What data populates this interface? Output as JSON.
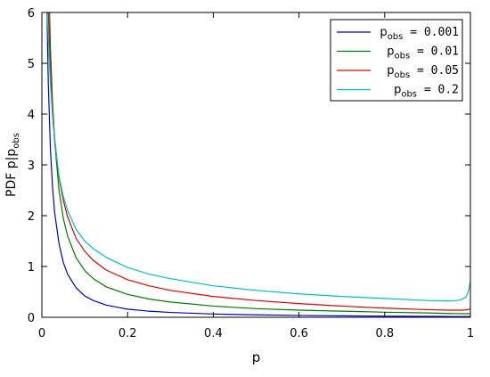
{
  "chart_data": {
    "type": "line",
    "title": "",
    "xlabel": "p",
    "ylabel": "PDF p|p",
    "ylabel_sub": "obs",
    "xlim": [
      0,
      1
    ],
    "ylim": [
      0,
      6
    ],
    "x_ticks": [
      {
        "value": 0,
        "label": "0"
      },
      {
        "value": 0.2,
        "label": "0.2"
      },
      {
        "value": 0.4,
        "label": "0.4"
      },
      {
        "value": 0.6,
        "label": "0.6"
      },
      {
        "value": 0.8,
        "label": "0.8"
      },
      {
        "value": 1,
        "label": "1"
      }
    ],
    "y_ticks": [
      {
        "value": 0,
        "label": "0"
      },
      {
        "value": 1,
        "label": "1"
      },
      {
        "value": 2,
        "label": "2"
      },
      {
        "value": 3,
        "label": "3"
      },
      {
        "value": 4,
        "label": "4"
      },
      {
        "value": 5,
        "label": "5"
      },
      {
        "value": 6,
        "label": "6"
      }
    ],
    "grid": false,
    "legend": {
      "placement": "top-right",
      "framed": true
    },
    "series": [
      {
        "name": "p",
        "name_sub": "obs",
        "name_value": " = 0.001",
        "color": "#0000cc",
        "x": [
          0.012,
          0.015,
          0.02,
          0.025,
          0.03,
          0.04,
          0.05,
          0.06,
          0.08,
          0.1,
          0.12,
          0.15,
          0.2,
          0.25,
          0.3,
          0.4,
          0.5,
          0.6,
          0.7,
          0.8,
          0.9,
          0.95,
          0.99,
          1.0
        ],
        "y": [
          6.0,
          4.6,
          3.3,
          2.55,
          2.05,
          1.45,
          1.08,
          0.85,
          0.58,
          0.42,
          0.33,
          0.24,
          0.16,
          0.12,
          0.095,
          0.065,
          0.048,
          0.036,
          0.028,
          0.022,
          0.017,
          0.015,
          0.013,
          0.013
        ]
      },
      {
        "name": "p",
        "name_sub": "obs",
        "name_value": " = 0.01",
        "color": "#007a00",
        "x": [
          0.018,
          0.02,
          0.025,
          0.03,
          0.04,
          0.05,
          0.06,
          0.08,
          0.1,
          0.12,
          0.15,
          0.2,
          0.25,
          0.3,
          0.4,
          0.5,
          0.6,
          0.7,
          0.8,
          0.9,
          0.95,
          0.99,
          1.0
        ],
        "y": [
          6.0,
          5.3,
          4.2,
          3.45,
          2.5,
          1.95,
          1.6,
          1.17,
          0.92,
          0.76,
          0.6,
          0.45,
          0.36,
          0.3,
          0.22,
          0.17,
          0.14,
          0.12,
          0.1,
          0.085,
          0.075,
          0.07,
          0.07
        ]
      },
      {
        "name": "p",
        "name_sub": "obs",
        "name_value": " = 0.05",
        "color": "#e00000",
        "x": [
          0.015,
          0.02,
          0.025,
          0.03,
          0.04,
          0.05,
          0.06,
          0.08,
          0.1,
          0.12,
          0.15,
          0.2,
          0.25,
          0.3,
          0.4,
          0.5,
          0.6,
          0.7,
          0.8,
          0.9,
          0.95,
          0.98,
          0.995,
          1.0
        ],
        "y": [
          6.0,
          4.9,
          4.1,
          3.5,
          2.75,
          2.3,
          1.98,
          1.55,
          1.3,
          1.12,
          0.93,
          0.74,
          0.62,
          0.53,
          0.41,
          0.33,
          0.27,
          0.22,
          0.18,
          0.15,
          0.14,
          0.14,
          0.15,
          0.17
        ]
      },
      {
        "name": "p",
        "name_sub": "obs",
        "name_value": " = 0.2",
        "color": "#00bfbf",
        "x": [
          0.012,
          0.015,
          0.02,
          0.025,
          0.03,
          0.04,
          0.05,
          0.06,
          0.08,
          0.1,
          0.12,
          0.15,
          0.2,
          0.25,
          0.3,
          0.4,
          0.5,
          0.6,
          0.7,
          0.8,
          0.9,
          0.95,
          0.97,
          0.98,
          0.99,
          0.995,
          1.0
        ],
        "y": [
          6.0,
          5.5,
          4.6,
          3.95,
          3.45,
          2.78,
          2.38,
          2.1,
          1.73,
          1.5,
          1.35,
          1.18,
          0.98,
          0.85,
          0.76,
          0.62,
          0.53,
          0.46,
          0.41,
          0.37,
          0.33,
          0.32,
          0.33,
          0.35,
          0.4,
          0.5,
          0.7
        ]
      }
    ]
  }
}
